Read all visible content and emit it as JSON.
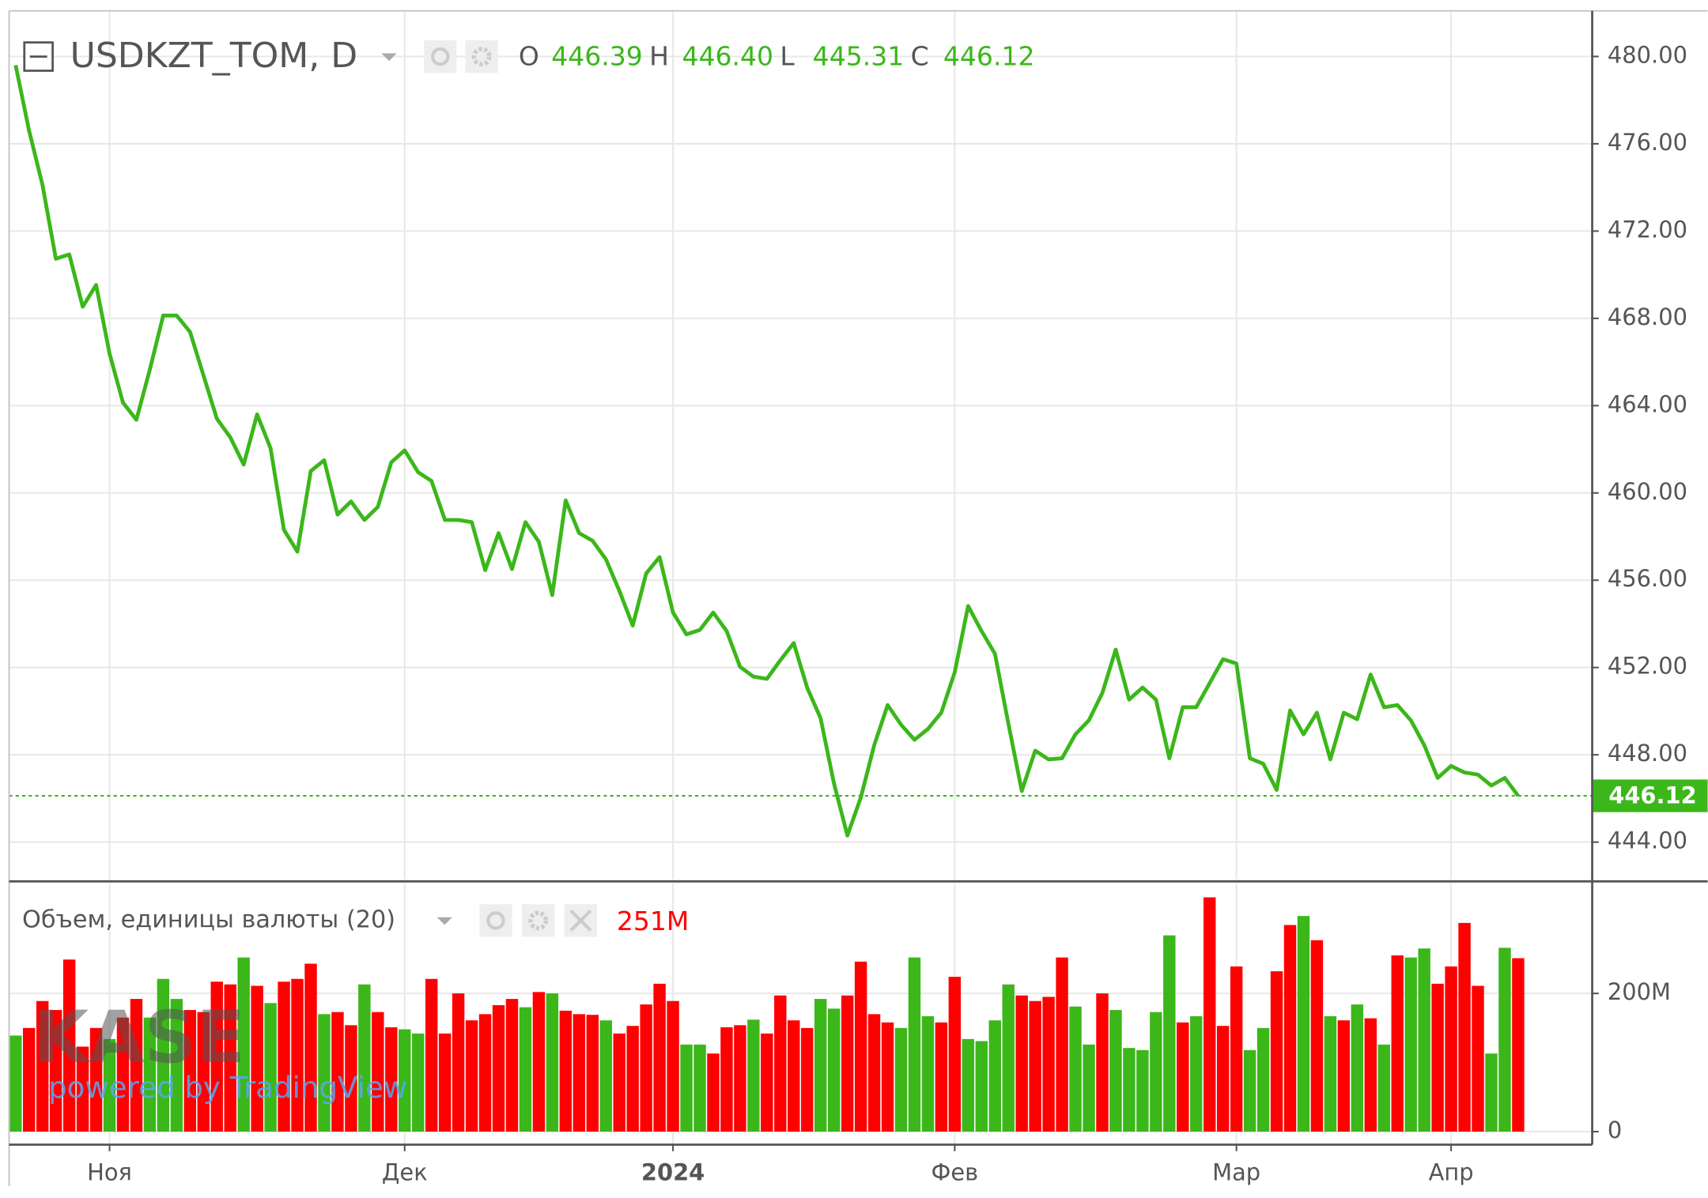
{
  "chart_data": [
    {
      "type": "line",
      "title": "USDKZT_TOM, D",
      "ohlc": [
        {
          "key": "O",
          "value": "446.39"
        },
        {
          "key": "H",
          "value": "446.40"
        },
        {
          "key": "L",
          "value": "445.31"
        },
        {
          "key": "C",
          "value": "446.12"
        }
      ],
      "series": [
        {
          "color": "#3bb71a",
          "values": [
            479.6,
            476.61,
            474.12,
            470.73,
            470.93,
            468.53,
            469.53,
            466.39,
            464.14,
            463.35,
            465.64,
            468.13,
            468.13,
            467.38,
            465.39,
            463.4,
            462.55,
            461.3,
            463.6,
            462.05,
            458.31,
            457.31,
            461.0,
            461.5,
            459.01,
            459.61,
            458.76,
            459.36,
            461.4,
            461.95,
            460.95,
            460.55,
            458.76,
            458.76,
            458.66,
            456.46,
            458.16,
            456.51,
            458.66,
            457.76,
            455.32,
            459.66,
            458.16,
            457.81,
            456.96,
            455.52,
            453.92,
            456.31,
            457.06,
            454.52,
            453.52,
            453.72,
            454.52,
            453.67,
            452.03,
            451.58,
            451.48,
            452.33,
            453.12,
            451.08,
            449.68,
            446.69,
            444.3,
            446.04,
            448.44,
            450.28,
            449.38,
            448.69,
            449.18,
            449.93,
            451.78,
            454.82,
            453.67,
            452.63,
            449.43,
            446.34,
            448.19,
            447.79,
            447.84,
            448.94,
            449.58,
            450.83,
            452.82,
            450.53,
            451.08,
            450.53,
            447.84,
            450.18,
            450.18,
            451.28,
            452.38,
            452.18,
            447.84,
            447.59,
            446.39,
            450.03,
            448.94,
            449.93,
            447.79,
            449.93,
            449.63,
            451.68,
            450.18,
            450.28,
            449.58,
            448.44,
            446.94,
            447.49,
            447.19,
            447.09,
            446.59,
            446.94,
            446.12
          ]
        }
      ],
      "ylim": [
        442.3,
        482.09
      ],
      "yticks": [
        {
          "value": 444,
          "label": "444.00"
        },
        {
          "value": 448,
          "label": "448.00"
        },
        {
          "value": 452,
          "label": "452.00"
        },
        {
          "value": 456,
          "label": "456.00"
        },
        {
          "value": 460,
          "label": "460.00"
        },
        {
          "value": 464,
          "label": "464.00"
        },
        {
          "value": 468,
          "label": "468.00"
        },
        {
          "value": 472,
          "label": "472.00"
        },
        {
          "value": 476,
          "label": "476.00"
        },
        {
          "value": 480,
          "label": "480.00"
        }
      ],
      "grid": true
    },
    {
      "type": "bar",
      "title": "Объем, единицы валюты (20)",
      "current_value": {
        "value": 251,
        "label": "251M"
      },
      "watermark": "KASE",
      "credit": "powered by TradingView",
      "up_color": "#3bb71a",
      "down_color": "#ff0000",
      "values": [
        139,
        150,
        189,
        176,
        249,
        123,
        150,
        134,
        165,
        192,
        165,
        221,
        192,
        176,
        173,
        217,
        213,
        252,
        211,
        186,
        217,
        221,
        243,
        170,
        173,
        154,
        213,
        173,
        151,
        148,
        142,
        221,
        142,
        200,
        161,
        170,
        183,
        192,
        180,
        202,
        200,
        175,
        170,
        169,
        161,
        142,
        153,
        184,
        214,
        189,
        126,
        126,
        113,
        151,
        154,
        162,
        142,
        197,
        161,
        150,
        192,
        178,
        197,
        246,
        170,
        158,
        150,
        252,
        167,
        158,
        224,
        134,
        131,
        161,
        213,
        197,
        189,
        195,
        252,
        181,
        126,
        200,
        176,
        121,
        118,
        173,
        284,
        158,
        167,
        339,
        153,
        239,
        118,
        150,
        232,
        299,
        312,
        277,
        167,
        161,
        184,
        164,
        126,
        255,
        252,
        265,
        214,
        239,
        302,
        211,
        113,
        266,
        251
      ],
      "up": [
        true,
        false,
        false,
        false,
        false,
        false,
        false,
        true,
        false,
        false,
        true,
        true,
        true,
        false,
        false,
        false,
        false,
        true,
        false,
        true,
        false,
        false,
        false,
        true,
        false,
        false,
        true,
        false,
        false,
        true,
        true,
        false,
        false,
        false,
        false,
        false,
        false,
        false,
        true,
        false,
        true,
        false,
        false,
        false,
        true,
        false,
        false,
        false,
        false,
        false,
        true,
        true,
        false,
        false,
        false,
        true,
        false,
        false,
        false,
        false,
        true,
        true,
        false,
        false,
        false,
        false,
        true,
        true,
        true,
        false,
        false,
        true,
        true,
        true,
        true,
        false,
        false,
        false,
        false,
        true,
        true,
        false,
        true,
        true,
        true,
        true,
        true,
        false,
        true,
        false,
        false,
        false,
        true,
        true,
        false,
        false,
        true,
        false,
        true,
        false,
        true,
        false,
        true,
        false,
        true,
        true,
        false,
        false,
        false,
        false,
        true,
        true,
        false
      ],
      "ylim": [
        -18.9,
        359
      ],
      "yticks": [
        0,
        {
          "value": 200,
          "label": "200M"
        }
      ],
      "xlim": [
        0,
        112
      ],
      "xticks": [
        {
          "value": 7,
          "label": "Ноя"
        },
        {
          "value": 29,
          "label": "Дек"
        },
        {
          "value": 49,
          "label": "2024"
        },
        {
          "value": 70,
          "label": "Фев"
        },
        {
          "value": 91,
          "label": "Мар"
        },
        {
          "value": 107,
          "label": "Апр"
        }
      ],
      "grid": true
    }
  ]
}
